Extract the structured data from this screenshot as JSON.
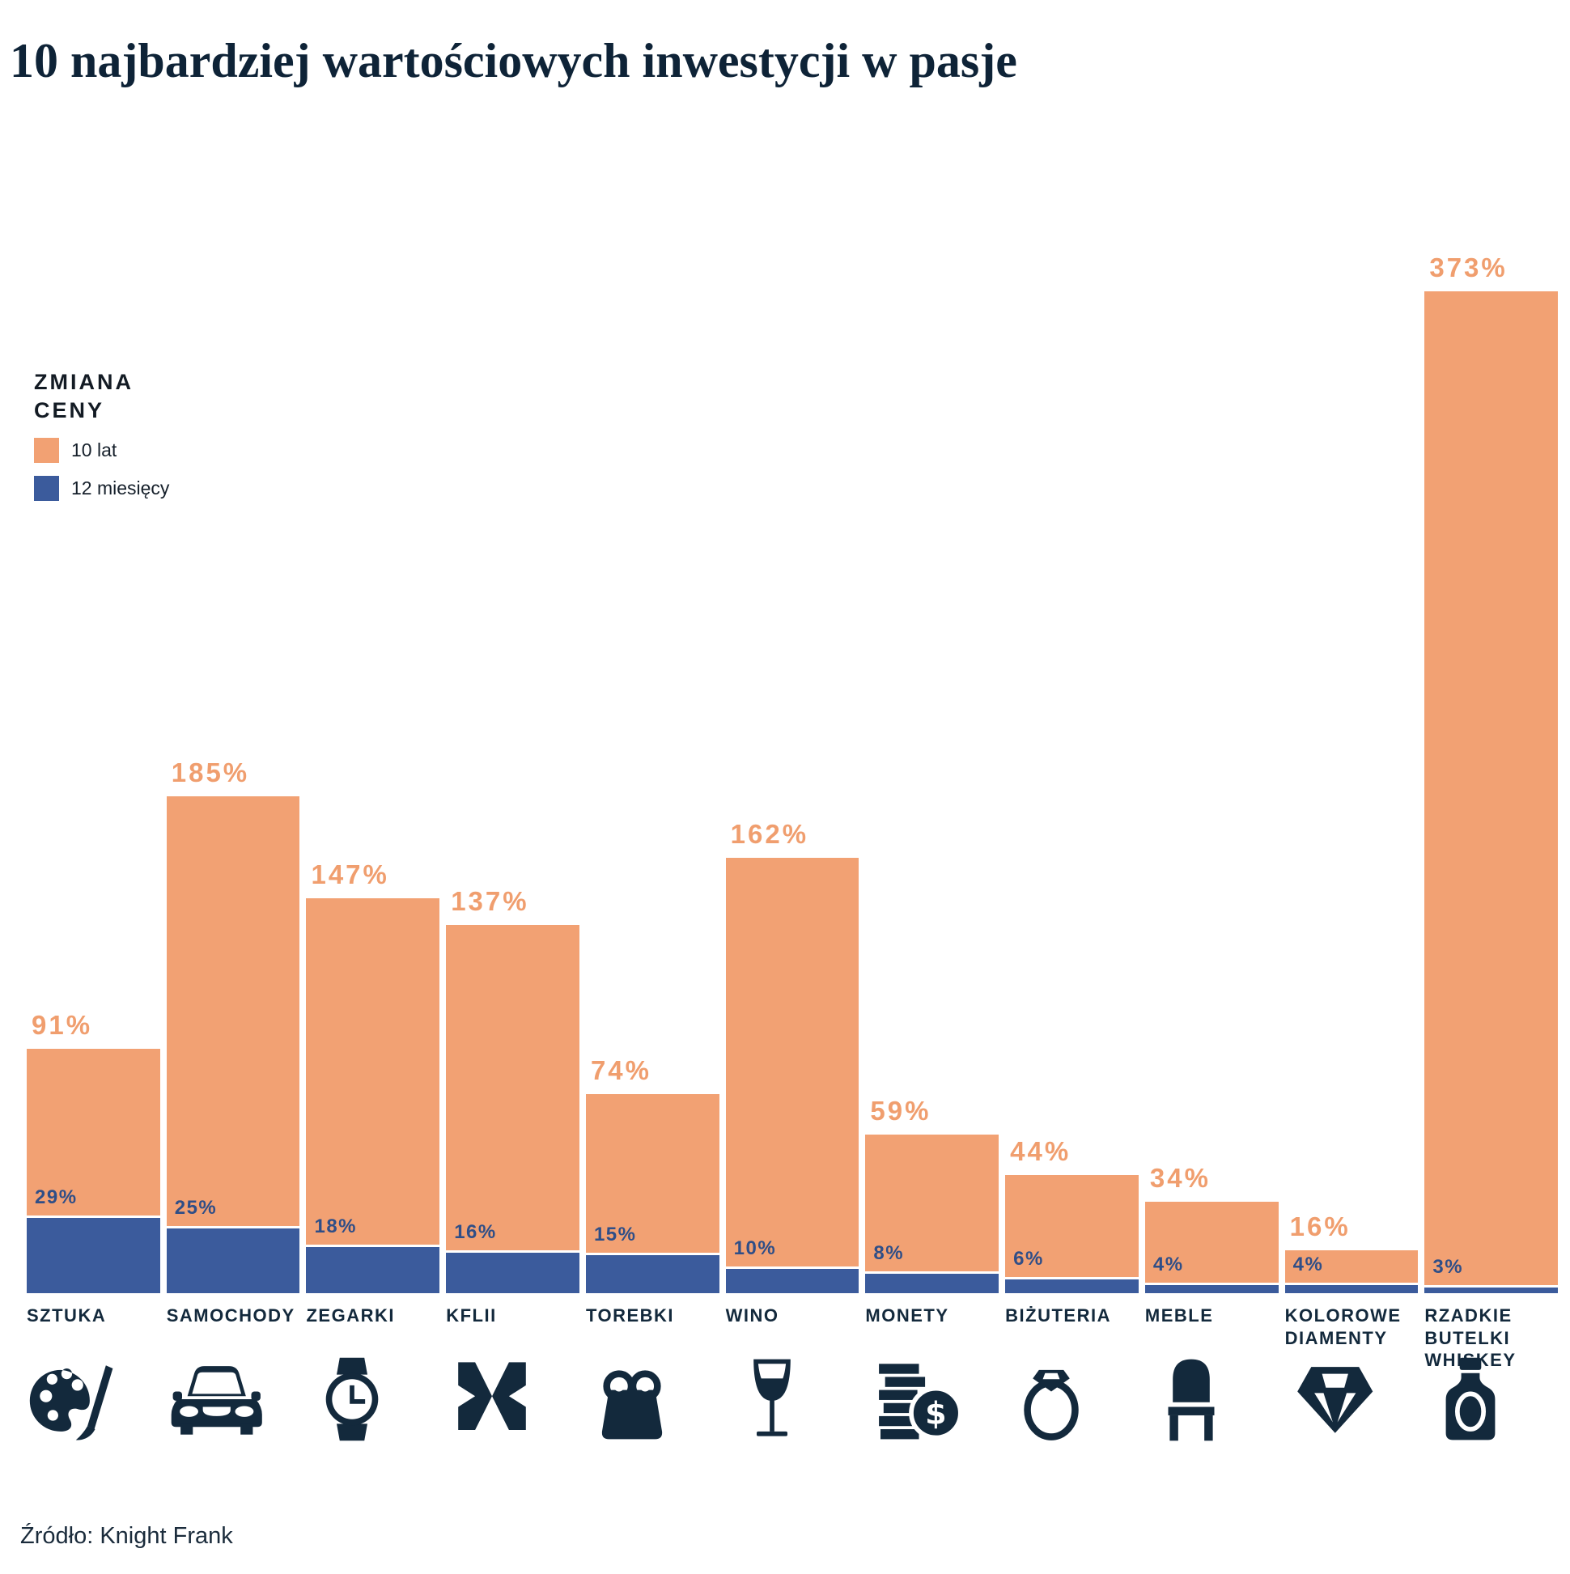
{
  "header": {
    "title": "10 najbardziej wartościowych inwestycji w pasje"
  },
  "legend": {
    "title": "ZMIANA CENY",
    "items": [
      {
        "label": "10 lat",
        "color": "#F2A173"
      },
      {
        "label": "12 miesięcy",
        "color": "#3B5B9C"
      }
    ]
  },
  "footer": {
    "source": "Źródło: Knight Frank"
  },
  "colors": {
    "bar_10_years": "#F2A173",
    "bar_12_months": "#3B5B9C",
    "value_label_10_years": "#F09E6E",
    "value_label_12_months": "#2F4E87",
    "category_text": "#13293C",
    "title_text": "#0E2337"
  },
  "chart_data": {
    "type": "bar",
    "title": "10 najbardziej wartościowych inwestycji w pasje",
    "unit": "%",
    "legend_position": "upper-left",
    "grid": false,
    "categories": [
      "SZTUKA",
      "SAMOCHODY",
      "ZEGARKI",
      "KFLII",
      "TOREBKI",
      "WINO",
      "MONETY",
      "BIŻUTERIA",
      "MEBLE",
      "KOLOROWE DIAMENTY",
      "RZADKIE BUTELKI WHISKEY"
    ],
    "series": [
      {
        "name": "10 lat",
        "color": "#F2A173",
        "values": [
          91,
          185,
          147,
          137,
          74,
          162,
          59,
          44,
          34,
          16,
          373
        ]
      },
      {
        "name": "12 miesięcy",
        "color": "#3B5B9C",
        "values": [
          29,
          25,
          18,
          16,
          15,
          10,
          8,
          6,
          4,
          4,
          3
        ]
      }
    ],
    "value_labels_10_years": [
      "91%",
      "185%",
      "147%",
      "137%",
      "74%",
      "162%",
      "59%",
      "44%",
      "34%",
      "16%",
      "373%"
    ],
    "value_labels_12_months": [
      "29%",
      "25%",
      "18%",
      "16%",
      "15%",
      "10%",
      "8%",
      "6%",
      "4%",
      "4%",
      "3%"
    ],
    "icons": [
      "palette-brush-icon",
      "car-icon",
      "wristwatch-icon",
      "kflii-checker-icon",
      "handbag-icon",
      "wine-glass-icon",
      "coins-dollar-icon",
      "diamond-ring-icon",
      "chair-icon",
      "diamond-gem-icon",
      "whiskey-bottle-icon"
    ],
    "source": "Źródło: Knight Frank",
    "ylim": [
      0,
      400
    ]
  }
}
